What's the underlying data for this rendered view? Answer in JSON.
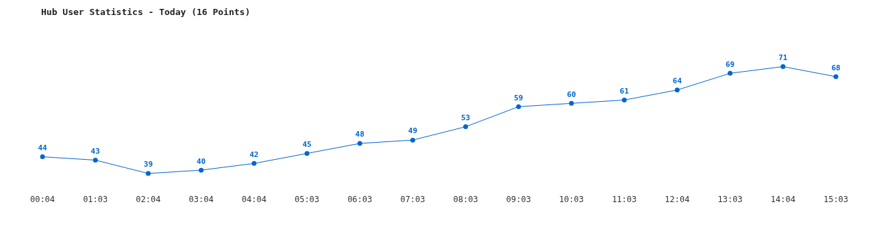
{
  "chart_data": {
    "type": "line",
    "title": "Hub User Statistics - Today (16 Points)",
    "categories": [
      "00:04",
      "01:03",
      "02:04",
      "03:04",
      "04:04",
      "05:03",
      "06:03",
      "07:03",
      "08:03",
      "09:03",
      "10:03",
      "11:03",
      "12:04",
      "13:03",
      "14:04",
      "15:03"
    ],
    "series": [
      {
        "color": "#0066cc",
        "values": [
          44,
          43,
          39,
          40,
          42,
          45,
          48,
          49,
          53,
          59,
          60,
          61,
          64,
          69,
          71,
          68
        ]
      }
    ],
    "data_labels": true,
    "grid": false,
    "legend": false,
    "marker": "circle",
    "line_style": "solid"
  }
}
